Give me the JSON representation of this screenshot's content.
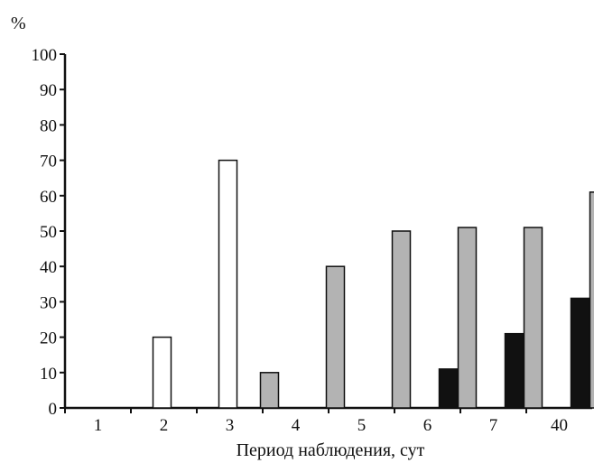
{
  "chart_data": {
    "type": "bar",
    "ylabel": "%",
    "xlabel": "Период наблюдения, сут",
    "ylim": [
      0,
      100
    ],
    "yticks": [
      "0",
      "10",
      "20",
      "30",
      "40",
      "50",
      "60",
      "70",
      "80",
      "90",
      "100"
    ],
    "categories": [
      "1",
      "2",
      "3",
      "4",
      "5",
      "6",
      "7",
      "40"
    ],
    "series": [
      {
        "fill": "#ffffff",
        "values": [
          0,
          20,
          70,
          0,
          0,
          0,
          0,
          0
        ]
      },
      {
        "fill": "#111111",
        "values": [
          0,
          0,
          0,
          0,
          0,
          11,
          21,
          31
        ]
      },
      {
        "fill": "#b3b3b3",
        "values": [
          0,
          0,
          10,
          40,
          50,
          51,
          51,
          61
        ]
      }
    ],
    "grid": false
  }
}
